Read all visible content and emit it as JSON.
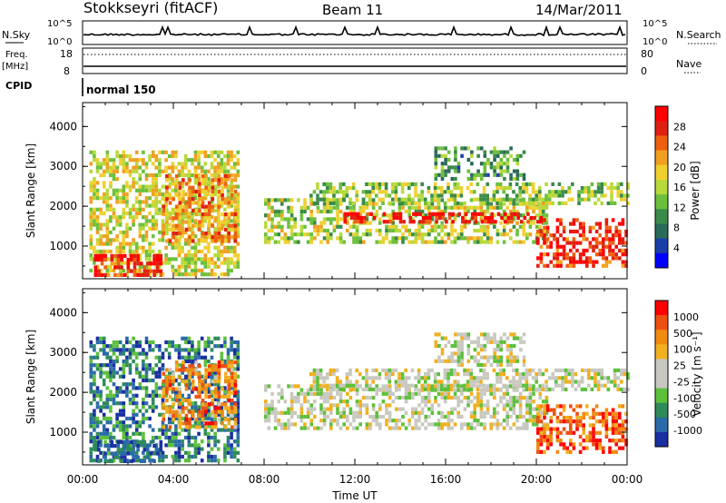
{
  "header": {
    "station": "Stokkseyri (fitACF)",
    "beam": "Beam 11",
    "date": "14/Mar/2011"
  },
  "top_panels": {
    "nsky_label": "N.Sky",
    "nsearch_label": "N.Search",
    "nsky_ticks": [
      "10^5",
      "10^0"
    ],
    "freq_label": "Freq.",
    "freq_unit": "[MHz]",
    "freq_ticks": [
      "18",
      "8"
    ],
    "nave_label": "Nave",
    "nave_ticks": [
      "80",
      "0"
    ],
    "cpid_label": "CPID",
    "cpid_value": "normal 150"
  },
  "chart_data": [
    {
      "type": "heatmap",
      "name": "power",
      "xlabel": "Time UT",
      "ylabel": "Slant Range [km]",
      "x_ticks": [
        "00:00",
        "04:00",
        "08:00",
        "12:00",
        "16:00",
        "20:00",
        "00:00"
      ],
      "xlim_hours": [
        0,
        24
      ],
      "ylim_km": [
        180,
        4600
      ],
      "y_ticks": [
        1000,
        2000,
        3000,
        4000
      ],
      "colorbar": {
        "label": "Power [dB]",
        "ticks": [
          "28",
          "24",
          "20",
          "16",
          "12",
          "8",
          "4"
        ],
        "colors": [
          "#0000ff",
          "#1b3fa8",
          "#2a6a5a",
          "#3a8a4a",
          "#6cbf3c",
          "#b7d93a",
          "#f0d030",
          "#f0a020",
          "#ee6010",
          "#e02010",
          "#ff0000"
        ]
      },
      "echo_regions": [
        {
          "t0": 0.3,
          "t1": 6.8,
          "r0": 250,
          "r1": 3400,
          "value": 0.55
        },
        {
          "t0": 0.5,
          "t1": 3.5,
          "r0": 300,
          "r1": 800,
          "value": 0.9
        },
        {
          "t0": 3.5,
          "t1": 6.7,
          "r0": 1100,
          "r1": 2800,
          "value": 0.7
        },
        {
          "t0": 8.0,
          "t1": 20.5,
          "r0": 1100,
          "r1": 2200,
          "value": 0.5
        },
        {
          "t0": 11.5,
          "t1": 20.2,
          "r0": 1600,
          "r1": 1850,
          "value": 0.95
        },
        {
          "t0": 10.0,
          "t1": 24.0,
          "r0": 2100,
          "r1": 2600,
          "value": 0.45
        },
        {
          "t0": 15.5,
          "t1": 19.5,
          "r0": 2700,
          "r1": 3500,
          "value": 0.35
        },
        {
          "t0": 20.0,
          "t1": 24.0,
          "r0": 500,
          "r1": 1700,
          "value": 0.88
        }
      ]
    },
    {
      "type": "heatmap",
      "name": "velocity",
      "xlabel": "Time UT",
      "ylabel": "Slant Range [km]",
      "x_ticks": [
        "00:00",
        "04:00",
        "08:00",
        "12:00",
        "16:00",
        "20:00",
        "00:00"
      ],
      "xlim_hours": [
        0,
        24
      ],
      "ylim_km": [
        180,
        4600
      ],
      "y_ticks": [
        1000,
        2000,
        3000,
        4000
      ],
      "colorbar": {
        "label": "Velocity [m s⁻¹]",
        "ticks": [
          "1000",
          "500",
          "100",
          "25",
          "-25",
          "-100",
          "-500",
          "-1000"
        ],
        "colors": [
          "#1a2fa0",
          "#2a6aa8",
          "#2e8a5a",
          "#5cc03a",
          "#c8c8c0",
          "#c8c8c0",
          "#f0b020",
          "#f08a10",
          "#ee5010",
          "#ff0000"
        ]
      },
      "echo_regions": [
        {
          "t0": 0.3,
          "t1": 6.8,
          "r0": 250,
          "r1": 3400,
          "value": 0.2
        },
        {
          "t0": 0.5,
          "t1": 3.5,
          "r0": 300,
          "r1": 800,
          "value": 0.15
        },
        {
          "t0": 3.5,
          "t1": 6.7,
          "r0": 1100,
          "r1": 2800,
          "value": 0.75
        },
        {
          "t0": 8.0,
          "t1": 20.5,
          "r0": 1100,
          "r1": 2200,
          "value": 0.5
        },
        {
          "t0": 10.0,
          "t1": 24.0,
          "r0": 2100,
          "r1": 2600,
          "value": 0.5
        },
        {
          "t0": 15.5,
          "t1": 19.5,
          "r0": 2700,
          "r1": 3500,
          "value": 0.5
        },
        {
          "t0": 20.0,
          "t1": 24.0,
          "r0": 500,
          "r1": 1700,
          "value": 0.82
        }
      ]
    }
  ]
}
